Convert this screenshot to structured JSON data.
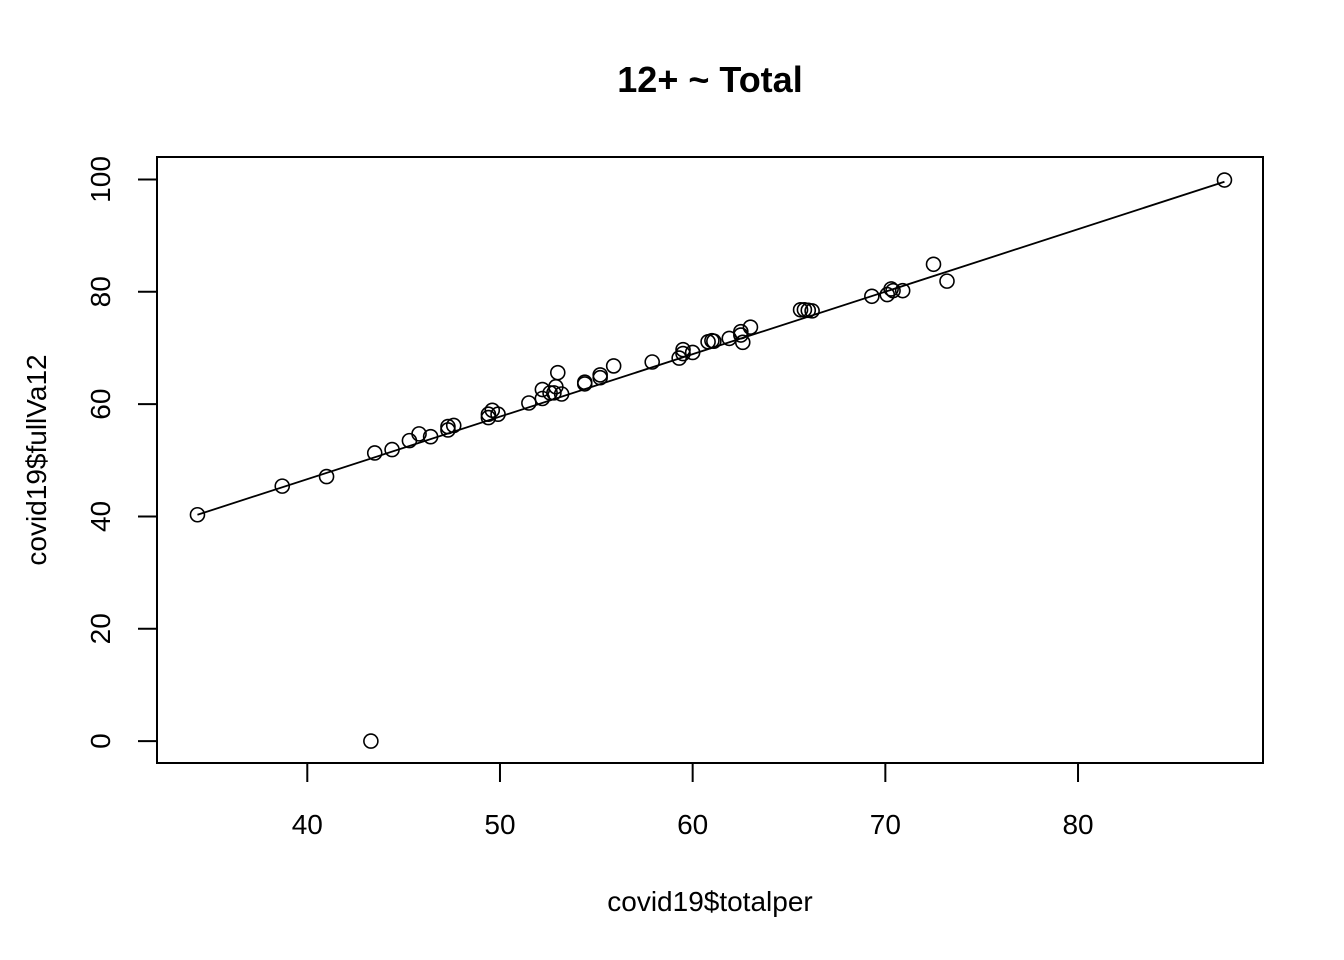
{
  "chart_data": {
    "type": "scatter",
    "title": "12+ ~ Total",
    "xlabel": "covid19$totalper",
    "ylabel": "covid19$fullVa12",
    "xlim": [
      32.2,
      89.6
    ],
    "ylim": [
      -3.9,
      104.0
    ],
    "x_ticks": [
      40,
      50,
      60,
      70,
      80
    ],
    "y_ticks": [
      0,
      20,
      40,
      60,
      80,
      100
    ],
    "x_tick_labels": [
      "40",
      "50",
      "60",
      "70",
      "80"
    ],
    "y_tick_labels": [
      "0",
      "20",
      "40",
      "60",
      "80",
      "100"
    ],
    "grid": false,
    "fit_line": {
      "x": [
        34.3,
        87.6
      ],
      "y": [
        40.3,
        99.6
      ]
    },
    "points": [
      {
        "x": 34.3,
        "y": 40.3
      },
      {
        "x": 38.7,
        "y": 45.4
      },
      {
        "x": 41.0,
        "y": 47.1
      },
      {
        "x": 43.3,
        "y": 0.0
      },
      {
        "x": 43.5,
        "y": 51.3
      },
      {
        "x": 44.4,
        "y": 51.9
      },
      {
        "x": 45.3,
        "y": 53.5
      },
      {
        "x": 45.8,
        "y": 54.7
      },
      {
        "x": 46.4,
        "y": 54.2
      },
      {
        "x": 47.3,
        "y": 55.4
      },
      {
        "x": 47.3,
        "y": 56.0
      },
      {
        "x": 47.6,
        "y": 56.2
      },
      {
        "x": 49.4,
        "y": 57.6
      },
      {
        "x": 49.4,
        "y": 58.2
      },
      {
        "x": 49.6,
        "y": 58.9
      },
      {
        "x": 49.9,
        "y": 58.2
      },
      {
        "x": 51.5,
        "y": 60.2
      },
      {
        "x": 52.2,
        "y": 61.0
      },
      {
        "x": 52.2,
        "y": 62.6
      },
      {
        "x": 52.6,
        "y": 62.0
      },
      {
        "x": 52.8,
        "y": 62.0
      },
      {
        "x": 52.9,
        "y": 63.1
      },
      {
        "x": 53.0,
        "y": 65.6
      },
      {
        "x": 53.2,
        "y": 61.8
      },
      {
        "x": 54.4,
        "y": 63.6
      },
      {
        "x": 54.4,
        "y": 63.9
      },
      {
        "x": 55.2,
        "y": 64.7
      },
      {
        "x": 55.2,
        "y": 65.2
      },
      {
        "x": 55.9,
        "y": 66.8
      },
      {
        "x": 57.9,
        "y": 67.5
      },
      {
        "x": 59.3,
        "y": 68.2
      },
      {
        "x": 59.5,
        "y": 69.0
      },
      {
        "x": 59.5,
        "y": 69.7
      },
      {
        "x": 60.0,
        "y": 69.2
      },
      {
        "x": 60.8,
        "y": 71.1
      },
      {
        "x": 61.0,
        "y": 71.3
      },
      {
        "x": 61.1,
        "y": 71.2
      },
      {
        "x": 61.9,
        "y": 71.7
      },
      {
        "x": 62.5,
        "y": 72.3
      },
      {
        "x": 62.5,
        "y": 72.9
      },
      {
        "x": 62.6,
        "y": 71.0
      },
      {
        "x": 63.0,
        "y": 73.7
      },
      {
        "x": 65.6,
        "y": 76.8
      },
      {
        "x": 65.8,
        "y": 76.8
      },
      {
        "x": 66.0,
        "y": 76.7
      },
      {
        "x": 66.2,
        "y": 76.6
      },
      {
        "x": 69.3,
        "y": 79.2
      },
      {
        "x": 70.1,
        "y": 79.5
      },
      {
        "x": 70.3,
        "y": 80.5
      },
      {
        "x": 70.4,
        "y": 80.2
      },
      {
        "x": 70.9,
        "y": 80.2
      },
      {
        "x": 72.5,
        "y": 84.9
      },
      {
        "x": 73.2,
        "y": 81.9
      },
      {
        "x": 87.6,
        "y": 99.9
      }
    ]
  }
}
